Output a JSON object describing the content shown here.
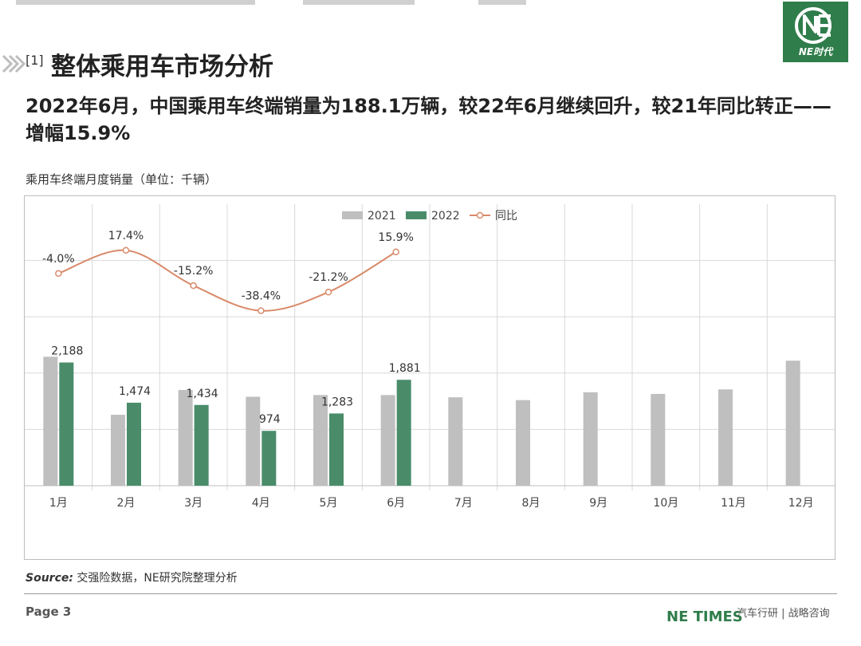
{
  "logo": {
    "text": "NE时代"
  },
  "section": {
    "number": "[1]",
    "title": "整体乘用车市场分析"
  },
  "headline": "2022年6月，中国乘用车终端销量为188.1万辆，较22年6月继续回升，较21年同比转正——增幅15.9%",
  "chart_caption": "乘用车终端月度销量（单位：千辆）",
  "chart_data": {
    "type": "bar",
    "categories": [
      "1月",
      "2月",
      "3月",
      "4月",
      "5月",
      "6月",
      "7月",
      "8月",
      "9月",
      "10月",
      "11月",
      "12月"
    ],
    "series": [
      {
        "name": "2021",
        "type": "bar",
        "color": "#bfbfbf",
        "values": [
          2290,
          1260,
          1700,
          1580,
          1610,
          1610,
          1570,
          1520,
          1660,
          1630,
          1710,
          2220
        ]
      },
      {
        "name": "2022",
        "type": "bar",
        "color": "#4a8c6a",
        "values": [
          2188,
          1474,
          1434,
          974,
          1283,
          1881,
          null,
          null,
          null,
          null,
          null,
          null
        ],
        "labels": [
          "2,188",
          "1,474",
          "1,434",
          "974",
          "1,283",
          "1,881",
          "",
          "",
          "",
          "",
          "",
          ""
        ]
      },
      {
        "name": "同比",
        "type": "line",
        "color": "#d98a6a",
        "values": [
          -4.0,
          17.4,
          -15.2,
          -38.4,
          -21.2,
          15.9,
          null,
          null,
          null,
          null,
          null,
          null
        ],
        "labels": [
          "-4.0%",
          "17.4%",
          "-15.2%",
          "-38.4%",
          "-21.2%",
          "15.9%",
          "",
          "",
          "",
          "",
          "",
          ""
        ]
      }
    ],
    "ylim": [
      0,
      5000
    ],
    "y2lim": [
      -200,
      60
    ],
    "grid": true,
    "legend": "top-center"
  },
  "source": {
    "label": "Source:",
    "text": " 交强险数据，NE研究院整理分析"
  },
  "footer": {
    "page": "Page 3",
    "brand": "NE TIMES",
    "sub": "汽车行研 | 战略咨询"
  }
}
